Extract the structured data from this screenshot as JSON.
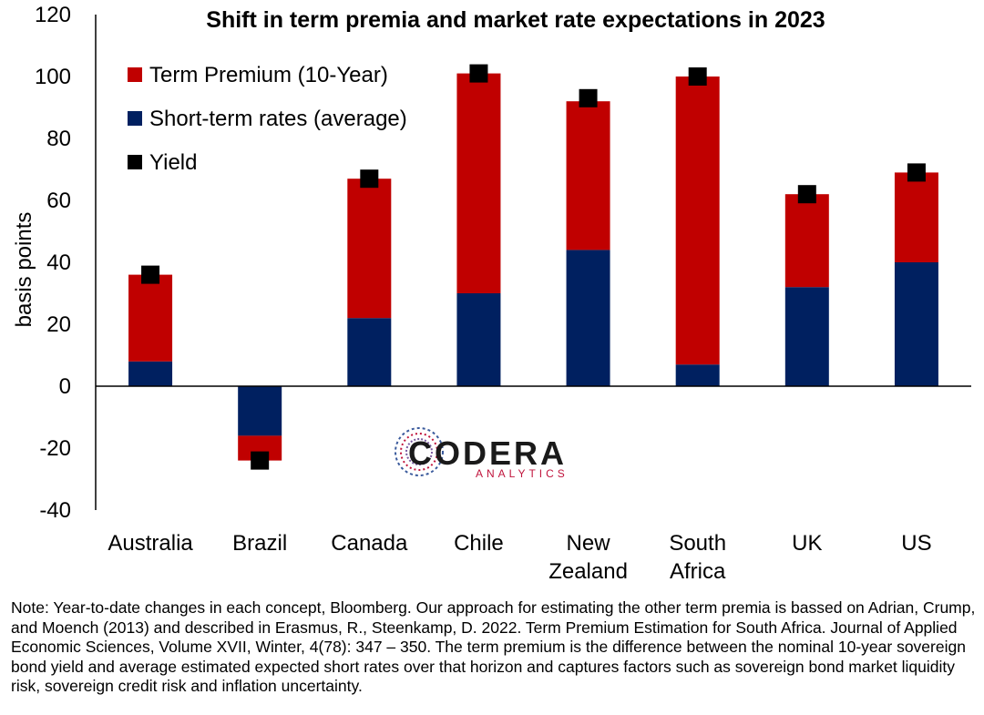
{
  "chart_data": {
    "type": "bar",
    "stacked": true,
    "title": "Shift in term premia and market rate expectations in 2023",
    "ylabel": "basis points",
    "xlabel": "",
    "ylim": [
      -40,
      120
    ],
    "yticks": [
      -40,
      -20,
      0,
      20,
      40,
      60,
      80,
      100,
      120
    ],
    "grid": false,
    "legend_position": "top-left",
    "categories": [
      [
        "Australia"
      ],
      [
        "Brazil"
      ],
      [
        "Canada"
      ],
      [
        "Chile"
      ],
      [
        "New",
        "Zealand"
      ],
      [
        "South",
        "Africa"
      ],
      [
        "UK"
      ],
      [
        "US"
      ]
    ],
    "series": [
      {
        "name": "Term Premium (10-Year)",
        "kind": "bar",
        "color": "#c00000",
        "values": [
          28,
          -8,
          45,
          71,
          48,
          93,
          30,
          29
        ]
      },
      {
        "name": "Short-term rates (average)",
        "kind": "bar",
        "color": "#002060",
        "values": [
          8,
          -16,
          22,
          30,
          44,
          7,
          32,
          40
        ]
      },
      {
        "name": "Yield",
        "kind": "marker",
        "color": "#000000",
        "values": [
          36,
          -24,
          67,
          101,
          93,
          100,
          62,
          69
        ]
      }
    ]
  },
  "logo": {
    "word": "CODERA",
    "sub": "ANALYTICS"
  },
  "note": "Note: Year-to-date changes in each concept, Bloomberg. Our approach for estimating the other term premia is bassed on Adrian, Crump, and Moench (2013) and described in Erasmus, R., Steenkamp, D. 2022. Term Premium Estimation for South Africa. Journal of Applied Economic Sciences, Volume XVII, Winter, 4(78): 347 – 350. The term premium is the difference between the nominal 10-year sovereign bond yield and average estimated expected short rates over that horizon and captures factors such as sovereign bond market liquidity risk, sovereign credit risk and inflation uncertainty."
}
